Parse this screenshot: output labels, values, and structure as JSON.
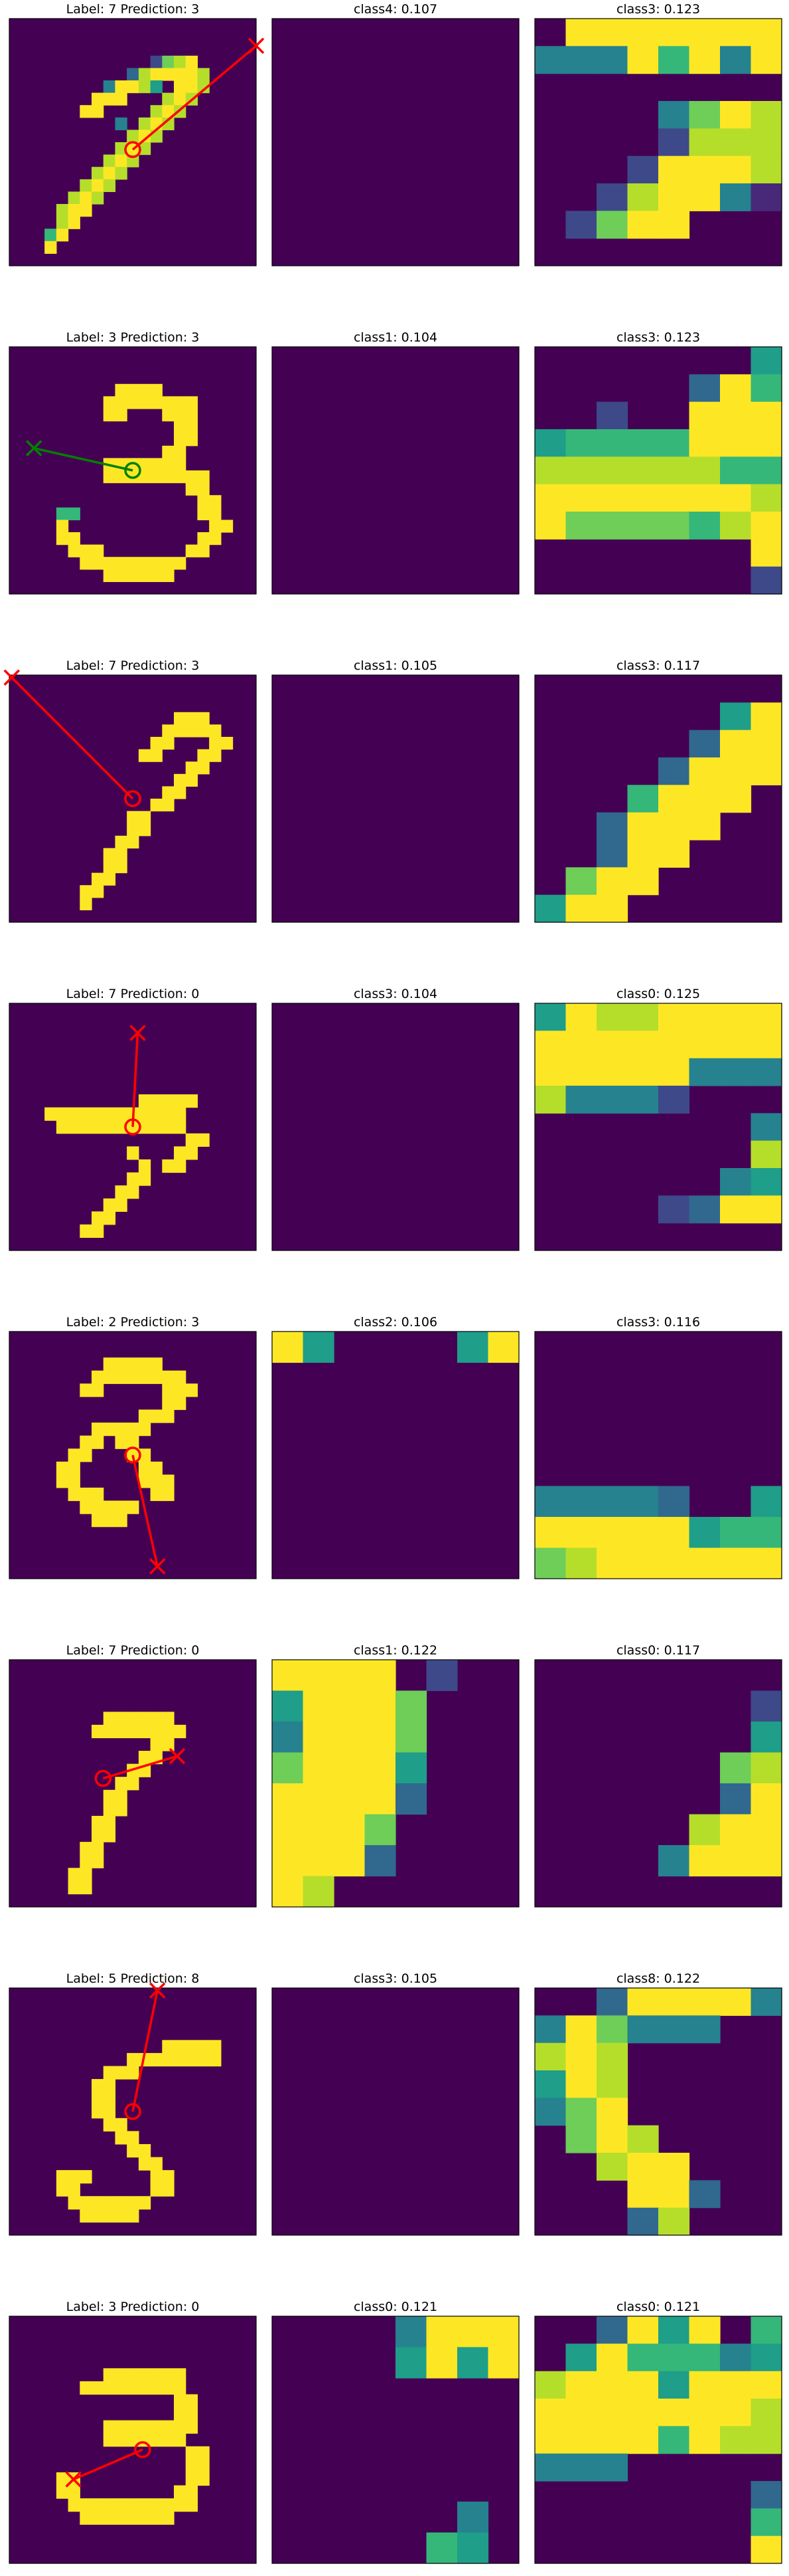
{
  "colors": {
    "background": "#440154",
    "stroke_wrong": "#ff0000",
    "stroke_right": "#008000",
    "frame": "#000000"
  },
  "rows": [
    {
      "title": "Label: 7 Prediction: 3",
      "correct": false,
      "mid_title": "class4: 0.107",
      "right_title": "class3: 0.123",
      "digit": [
        ".....................",
        ".....................",
        ".....................",
        "............2789.....",
        "..........3899998....",
        "........49985.998....",
        ".......999...898.....",
        "......99....898......",
        ".........4.898.......",
        "..........898........",
        ".........898.........",
        "........898..........",
        ".......898...........",
        "......898............",
        ".....898.............",
        "....899..............",
        "....89...............",
        "...69................",
        "...9.................",
        "....................."
      ],
      "mid_grid": [
        "........",
        "........",
        "........",
        "........",
        "........",
        "........",
        "........",
        "........"
      ],
      "right_grid": [
        ".9999999",
        "44496949",
        "........",
        "....4798",
        "....2888",
        "...29998",
        "..289941",
        ".2799...",
        "........"
      ],
      "arrow": {
        "circle": [
          5.0,
          5.3
        ],
        "cross": [
          10.0,
          1.1
        ]
      }
    },
    {
      "title": "Label: 3 Prediction: 3",
      "correct": true,
      "mid_title": "class1: 0.104",
      "right_title": "class3: 0.123",
      "digit": [
        ".....................",
        ".....................",
        ".....................",
        ".........9999........",
        "........99999999.....",
        "........99...999.....",
        "..............99.....",
        "..............99.....",
        ".............99......",
        "........9999999......",
        "........999999999....",
        "...............99....",
        "................99...",
        "....66..........99...",
        "....9............99..",
        "....99..........99...",
        ".....999.......99....",
        "......999999999......",
        "........999999.......",
        "....................."
      ],
      "mid_grid": [
        "........",
        "........",
        "........",
        "........",
        "........",
        "........",
        "........",
        "........"
      ],
      "right_grid": [
        ".......5",
        ".....396",
        "..2..999",
        "56666999",
        "88888866",
        "99999998",
        "97777689",
        ".......9",
        ".......2"
      ],
      "arrow": {
        "circle": [
          5.0,
          5.0
        ],
        "cross": [
          1.0,
          4.1
        ]
      }
    },
    {
      "title": "Label: 7 Prediction: 3",
      "correct": false,
      "mid_title": "class1: 0.105",
      "right_title": "class3: 0.117",
      "digit": [
        ".....................",
        ".....................",
        ".....................",
        "..............999....",
        ".............99999...",
        "............99...99..",
        "...........99...99...",
        "...............99....",
        "..............99.....",
        ".............99......",
        "............99.......",
        "..........99.........",
        "..........99.........",
        ".........99..........",
        "........99...........",
        "........99...........",
        ".......99............",
        "......99.............",
        "......9..............",
        "....................."
      ],
      "mid_grid": [
        "........",
        "........",
        "........",
        "........",
        "........",
        "........",
        "........",
        "........"
      ],
      "right_grid": [
        "........",
        "......59",
        ".....399",
        "....3999",
        "...6999.",
        "..3999..",
        "..399...",
        ".799....",
        "599....."
      ],
      "arrow": {
        "circle": [
          5.0,
          5.0
        ],
        "cross": [
          0.1,
          0.1
        ]
      }
    },
    {
      "title": "Label: 7 Prediction: 0",
      "correct": false,
      "mid_title": "class3: 0.104",
      "right_title": "class0: 0.125",
      "digit": [
        ".....................",
        ".....................",
        ".....................",
        ".....................",
        ".....................",
        ".....................",
        ".....................",
        "...........99999.....",
        "...999999999999......",
        "....99999999999......",
        "...............99....",
        "..........9...99.....",
        "...........9.99......",
        "..........99.........",
        ".........99..........",
        "........99...........",
        ".......99............",
        "......99.............",
        "....................."
      ],
      "mid_grid": [
        "........",
        "........",
        "........",
        "........",
        "........",
        "........",
        "........",
        "........"
      ],
      "right_grid": [
        "59889999",
        "99999999",
        "99999444",
        "84442...",
        ".......4",
        ".......8",
        "......45",
        "....2399",
        "........"
      ],
      "arrow": {
        "circle": [
          5.0,
          5.0
        ],
        "cross": [
          5.2,
          1.2
        ]
      }
    },
    {
      "title": "Label: 2 Prediction: 3",
      "correct": false,
      "mid_title": "class2: 0.106",
      "right_title": "class3: 0.116",
      "digit": [
        ".....................",
        ".....................",
        "........99999........",
        ".......99999999......",
        "......99.....999.....",
        ".............99......",
        "...........999.......",
        ".......99999.........",
        "......99.99..........",
        ".....99...99.........",
        "....99.....99........",
        "....99.....999.......",
        ".....999....99.......",
        "......99999..........",
        ".......999...........",
        ".....................",
        ".....................",
        ".....................",
        "....................."
      ],
      "mid_grid": [
        "95....59",
        "........",
        "........",
        "........",
        "........",
        "........",
        "........",
        "........"
      ],
      "right_grid": [
        "........",
        "........",
        "........",
        "........",
        "........",
        "44443..5",
        "99999566",
        "78999999"
      ],
      "arrow": {
        "circle": [
          5.0,
          5.0
        ],
        "cross": [
          6.0,
          9.5
        ]
      }
    },
    {
      "title": "Label: 7 Prediction: 0",
      "correct": false,
      "mid_title": "class1: 0.122",
      "right_title": "class0: 0.117",
      "digit": [
        ".....................",
        ".....................",
        ".....................",
        ".....................",
        "........999999.......",
        ".......99999999......",
        "............99.......",
        "...........99........",
        "..........99.........",
        ".........99..........",
        "........99...........",
        "........99...........",
        ".......99............",
        ".......99............",
        "......99.............",
        "......99.............",
        ".....99..............",
        ".....99..............",
        "....................."
      ],
      "mid_grid": [
        "9999.2..",
        "59997...",
        "49997...",
        "79995...",
        "99993...",
        "9997....",
        "9993....",
        "98......"
      ],
      "right_grid": [
        "........",
        ".......2",
        ".......5",
        "......78",
        "......39",
        ".....899",
        "....4999",
        "........"
      ],
      "arrow": {
        "circle": [
          3.8,
          4.8
        ],
        "cross": [
          6.8,
          3.9
        ]
      }
    },
    {
      "title": "Label: 5 Prediction: 8",
      "correct": false,
      "mid_title": "class3: 0.105",
      "right_title": "class8: 0.122",
      "digit": [
        ".....................",
        ".....................",
        ".....................",
        ".....................",
        ".............99999...",
        "..........99999999...",
        "........999..........",
        ".......99............",
        ".......99............",
        ".......99............",
        "........99...........",
        ".........99..........",
        "..........99.........",
        "...........99........",
        "....999.....99.......",
        "....99......99.......",
        ".....9999999.........",
        "......99999..........",
        "....................."
      ],
      "mid_grid": [
        "........",
        "........",
        "........",
        "........",
        "........",
        "........",
        "........",
        "........"
      ],
      "right_grid": [
        "..399994",
        "497444..",
        "898.....",
        "598.....",
        "479.....",
        ".798....",
        "..899...",
        "...993..",
        "...38..."
      ],
      "arrow": {
        "circle": [
          5.0,
          5.0
        ],
        "cross": [
          6.0,
          0.1
        ]
      }
    },
    {
      "title": "Label: 3 Prediction: 0",
      "correct": false,
      "mid_title": "class0: 0.121",
      "right_title": "class0: 0.121",
      "digit": [
        ".....................",
        ".....................",
        ".....................",
        ".....................",
        "........9999999......",
        "......999999999......",
        "..............99.....",
        "..............99.....",
        "........99999999.....",
        "........9999999......",
        "...............99....",
        "...............99....",
        "....99.........99....",
        "....99........99.....",
        ".....99999999999.....",
        "......99999999.......",
        ".....................",
        ".....................",
        "....................."
      ],
      "mid_grid": [
        "....4999",
        "....5959",
        "........",
        "........",
        "........",
        "........",
        "......4.",
        ".....65."
      ],
      "right_grid": [
        "..3959.6",
        ".5966645",
        "89995999",
        "99999998",
        "99996988",
        "444.....",
        ".......3",
        ".......6",
        ".......9"
      ],
      "arrow": {
        "circle": [
          5.4,
          5.4
        ],
        "cross": [
          2.6,
          6.6
        ]
      }
    }
  ]
}
